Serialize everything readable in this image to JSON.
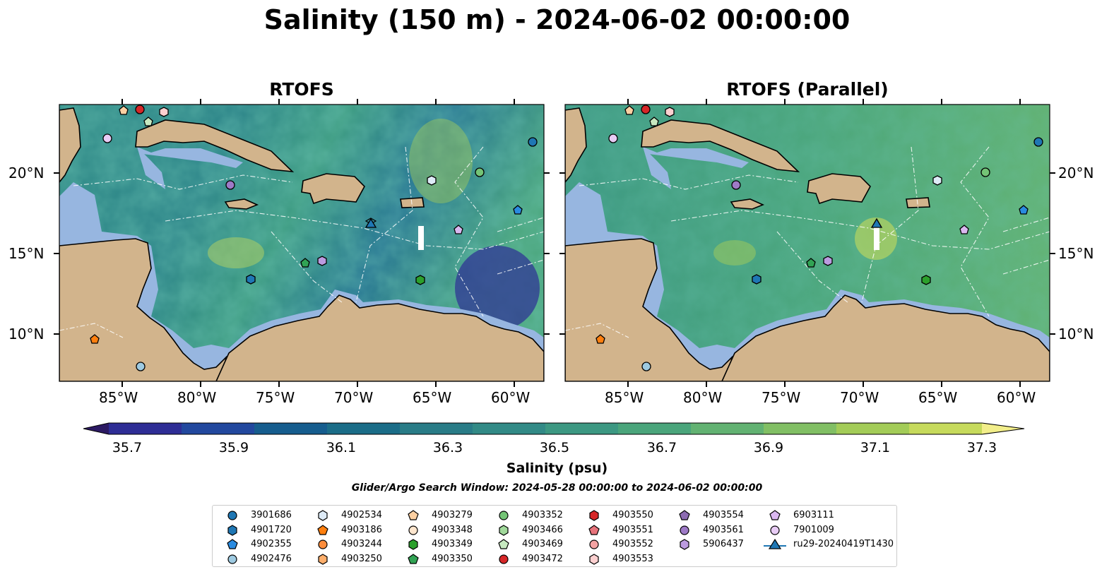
{
  "suptitle": "Salinity (150 m) - 2024-06-02 00:00:00",
  "panels": [
    {
      "title": "RTOFS"
    },
    {
      "title": "RTOFS (Parallel)"
    }
  ],
  "axes": {
    "lon_ticks": [
      "85°W",
      "80°W",
      "75°W",
      "70°W",
      "65°W",
      "60°W"
    ],
    "lat_ticks": [
      "20°N",
      "15°N",
      "10°N"
    ]
  },
  "colorbar": {
    "label": "Salinity (psu)",
    "ticks": [
      "35.7",
      "35.9",
      "36.1",
      "36.3",
      "36.5",
      "36.7",
      "36.9",
      "37.1",
      "37.3"
    ],
    "colors": [
      "#2c1a63",
      "#2e2d95",
      "#22489e",
      "#165d8e",
      "#1b6d88",
      "#297c87",
      "#328a86",
      "#3c9882",
      "#4aa57b",
      "#62b272",
      "#81bf64",
      "#a3cc58",
      "#c6da5c",
      "#f2ee8a"
    ],
    "extend": "both"
  },
  "search_window": "Glider/Argo Search Window: 2024-05-28 00:00:00 to 2024-06-02 00:00:00",
  "map_colors": {
    "land": "#d2b48c",
    "shelf": "#97b6e0",
    "deep": "#2c1a63"
  },
  "legend": {
    "columns": [
      [
        {
          "label": "3901686",
          "marker": "circle",
          "color": "#1f77b4"
        },
        {
          "label": "4901720",
          "marker": "hexagon",
          "color": "#1f77b4"
        },
        {
          "label": "4902355",
          "marker": "pentagon",
          "color": "#2a8be0"
        },
        {
          "label": "4902476",
          "marker": "circle",
          "color": "#9ecae1"
        }
      ],
      [
        {
          "label": "4902534",
          "marker": "hexagon",
          "color": "#deebf7"
        },
        {
          "label": "4903186",
          "marker": "pentagon",
          "color": "#ff7f0e"
        },
        {
          "label": "4903244",
          "marker": "circle",
          "color": "#fd8d3c"
        },
        {
          "label": "4903250",
          "marker": "hexagon",
          "color": "#fdae6b"
        }
      ],
      [
        {
          "label": "4903279",
          "marker": "pentagon",
          "color": "#fdd0a2"
        },
        {
          "label": "4903348",
          "marker": "circle",
          "color": "#fee6ce"
        },
        {
          "label": "4903349",
          "marker": "hexagon",
          "color": "#2ca02c"
        },
        {
          "label": "4903350",
          "marker": "pentagon",
          "color": "#31a354"
        }
      ],
      [
        {
          "label": "4903352",
          "marker": "circle",
          "color": "#74c476"
        },
        {
          "label": "4903466",
          "marker": "hexagon",
          "color": "#a1d99b"
        },
        {
          "label": "4903469",
          "marker": "pentagon",
          "color": "#c7e9c0"
        },
        {
          "label": "4903472",
          "marker": "circle",
          "color": "#d62728"
        }
      ],
      [
        {
          "label": "4903550",
          "marker": "hexagon",
          "color": "#d62728"
        },
        {
          "label": "4903551",
          "marker": "pentagon",
          "color": "#e7737b"
        },
        {
          "label": "4903552",
          "marker": "circle",
          "color": "#f4a3a3"
        },
        {
          "label": "4903553",
          "marker": "hexagon",
          "color": "#fdd0d0"
        }
      ],
      [
        {
          "label": "4903554",
          "marker": "pentagon",
          "color": "#8c6bb1"
        },
        {
          "label": "4903561",
          "marker": "circle",
          "color": "#9e7ac7"
        },
        {
          "label": "5906437",
          "marker": "hexagon",
          "color": "#bc9be0"
        }
      ],
      [
        {
          "label": "6903111",
          "marker": "pentagon",
          "color": "#dab8f0"
        },
        {
          "label": "7901009",
          "marker": "circle",
          "color": "#e8ccf5"
        },
        {
          "label": "ru29-20240419T1430",
          "marker": "triangle",
          "color": "#1f77b4"
        }
      ]
    ]
  }
}
